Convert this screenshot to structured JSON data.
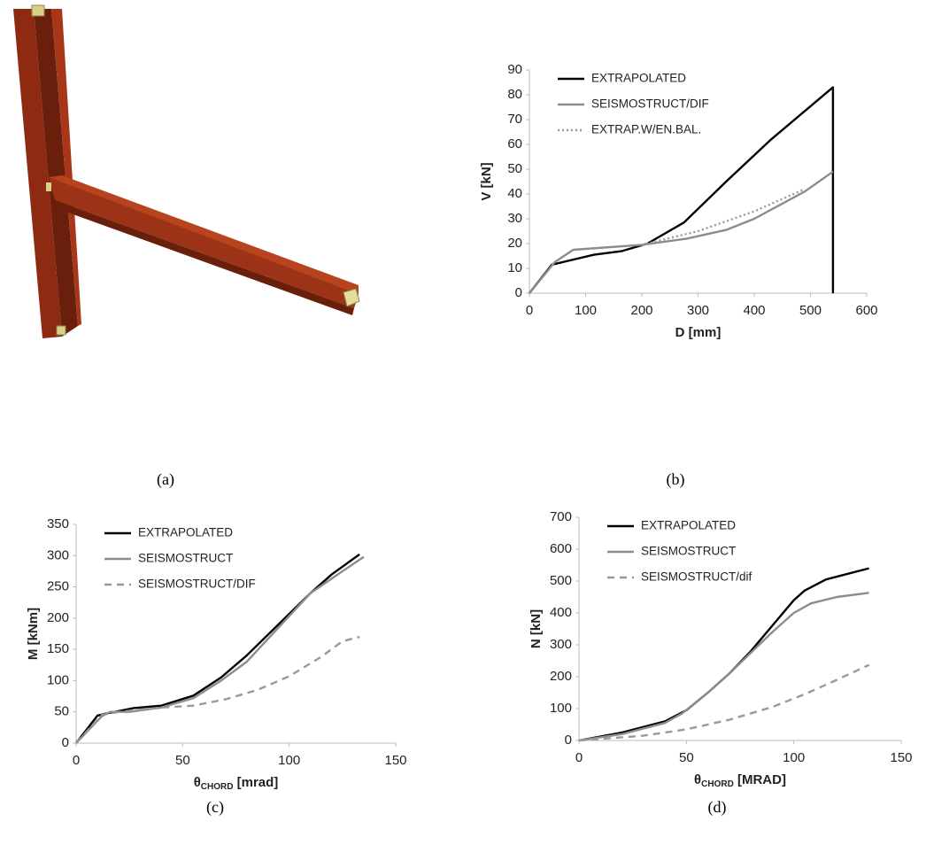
{
  "figure": {
    "captions": [
      "(a)",
      "(b)",
      "(c)",
      "(d)"
    ]
  },
  "chart_data": [
    {
      "type": "line",
      "y_label": "V [kN]",
      "x_label": "D [mm]",
      "xlim": [
        0,
        600
      ],
      "xticks": [
        0,
        100,
        200,
        300,
        400,
        500,
        600
      ],
      "ylim": [
        0,
        90
      ],
      "yticks": [
        0,
        10,
        20,
        30,
        40,
        50,
        60,
        70,
        80,
        90
      ],
      "legend": "upper left",
      "series": [
        {
          "name": "EXTRAPOLATED",
          "color": "#000000",
          "dash": "solid",
          "x": [
            0,
            40,
            115,
            165,
            210,
            275,
            350,
            430,
            540,
            540
          ],
          "values": [
            0,
            11.5,
            15.5,
            17,
            20,
            28.5,
            45,
            62,
            83,
            0
          ]
        },
        {
          "name": "SEISMOSTRUCT/DIF",
          "color": "#8c8c8c",
          "dash": "solid",
          "x": [
            0,
            45,
            78,
            200,
            280,
            350,
            400,
            490,
            540
          ],
          "values": [
            0,
            12.5,
            17.5,
            19.5,
            22,
            25.5,
            30,
            41,
            49
          ]
        },
        {
          "name": "EXTRAP.W/EN.BAL.",
          "color": "#999999",
          "dash": "dot",
          "x": [
            200,
            300,
            400,
            490
          ],
          "values": [
            19.5,
            25,
            33,
            42
          ]
        }
      ]
    },
    {
      "type": "line",
      "y_label": "M [kNm]",
      "x_label": "θ",
      "x_label_subscript": "CHORD",
      "x_label_unit": " [mrad]",
      "xlim": [
        0,
        150
      ],
      "xticks": [
        0,
        50,
        100,
        150
      ],
      "ylim": [
        0,
        350
      ],
      "yticks": [
        0,
        50,
        100,
        150,
        200,
        250,
        300,
        350
      ],
      "legend": "upper left",
      "series": [
        {
          "name": "EXTRAPOLATED",
          "color": "#000000",
          "dash": "solid",
          "x": [
            0,
            10,
            15,
            27,
            40,
            55,
            68,
            80,
            95,
            110,
            120,
            133
          ],
          "values": [
            0,
            44,
            48,
            56,
            60,
            76,
            105,
            140,
            190,
            240,
            270,
            302
          ]
        },
        {
          "name": "SEISMOSTRUCT",
          "color": "#8c8c8c",
          "dash": "solid",
          "x": [
            0,
            12,
            16,
            25,
            40,
            55,
            68,
            80,
            95,
            110,
            125,
            135
          ],
          "values": [
            0,
            43,
            50,
            50,
            57,
            72,
            100,
            130,
            185,
            240,
            275,
            298
          ]
        },
        {
          "name": "SEISMOSTRUCT/DIF",
          "color": "#999999",
          "dash": "dash",
          "x": [
            0,
            12,
            20,
            40,
            55,
            70,
            85,
            100,
            115,
            125,
            133
          ],
          "values": [
            0,
            45,
            50,
            57,
            60,
            70,
            85,
            107,
            138,
            163,
            170
          ]
        }
      ]
    },
    {
      "type": "line",
      "y_label": "N [kN]",
      "x_label": "θ",
      "x_label_subscript": "CHORD",
      "x_label_unit": " [MRAD]",
      "xlim": [
        0,
        150
      ],
      "xticks": [
        0,
        50,
        100,
        150
      ],
      "ylim": [
        0,
        700
      ],
      "yticks": [
        0,
        100,
        200,
        300,
        400,
        500,
        600,
        700
      ],
      "legend": "upper left",
      "series": [
        {
          "name": "EXTRAPOLATED",
          "color": "#000000",
          "dash": "solid",
          "x": [
            0,
            20,
            40,
            50,
            60,
            70,
            80,
            90,
            100,
            105,
            115,
            135
          ],
          "values": [
            0,
            25,
            60,
            95,
            150,
            210,
            280,
            360,
            440,
            470,
            505,
            540
          ]
        },
        {
          "name": "SEISMOSTRUCT",
          "color": "#8c8c8c",
          "dash": "solid",
          "x": [
            0,
            20,
            40,
            48,
            60,
            70,
            80,
            90,
            100,
            108,
            120,
            135
          ],
          "values": [
            0,
            20,
            55,
            85,
            150,
            210,
            275,
            340,
            400,
            430,
            450,
            463
          ]
        },
        {
          "name": "SEISMOSTRUCT/dif",
          "color": "#999999",
          "dash": "dash",
          "x": [
            0,
            30,
            50,
            70,
            90,
            105,
            120,
            135
          ],
          "values": [
            0,
            15,
            35,
            65,
            105,
            145,
            190,
            237
          ]
        }
      ]
    }
  ]
}
